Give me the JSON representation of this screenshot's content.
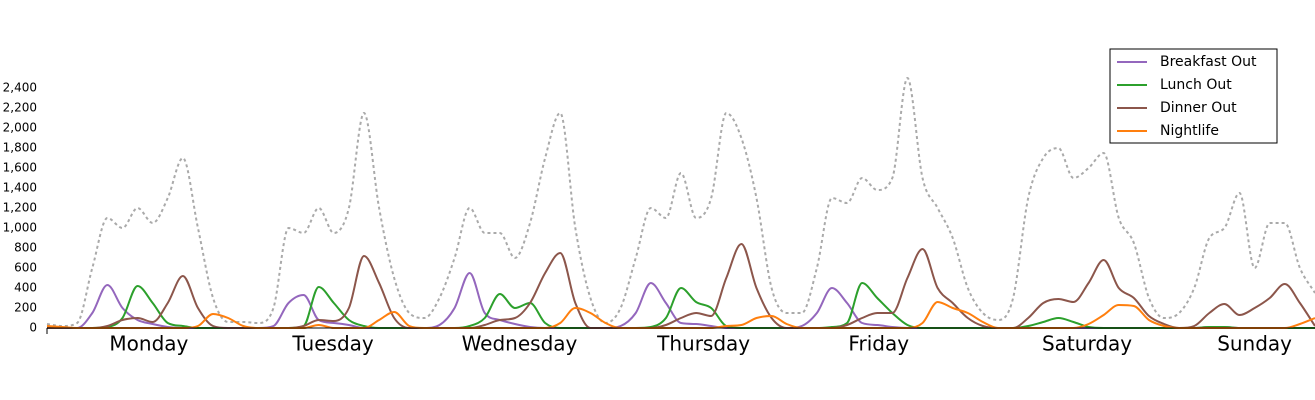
{
  "chart_data": {
    "type": "line",
    "x": [
      0,
      2,
      4,
      6,
      8,
      10,
      12,
      14,
      16,
      18,
      20,
      22,
      24,
      26,
      28,
      30,
      32,
      34,
      36,
      38,
      40,
      42,
      44,
      46,
      48,
      50,
      52,
      54,
      56,
      58,
      60,
      62,
      64,
      66,
      68,
      70,
      72,
      74,
      76,
      78,
      80,
      82,
      84,
      86,
      88,
      90,
      92,
      94,
      96,
      98,
      100,
      102,
      104,
      106,
      108,
      110,
      112,
      114,
      116,
      118,
      120,
      122,
      124,
      126,
      128,
      130,
      132,
      134,
      136,
      138,
      140,
      142,
      144,
      146,
      148,
      150,
      152,
      154,
      156,
      158,
      160,
      162,
      164,
      166,
      168
    ],
    "xlim": [
      0,
      168
    ],
    "xticks": [
      {
        "value": 13.5,
        "label": "Monday"
      },
      {
        "value": 37.9,
        "label": "Tuesday"
      },
      {
        "value": 62.6,
        "label": "Wednesday"
      },
      {
        "value": 87,
        "label": "Thursday"
      },
      {
        "value": 110.2,
        "label": "Friday"
      },
      {
        "value": 137.8,
        "label": "Saturday"
      },
      {
        "value": 160,
        "label": "Sunday"
      }
    ],
    "ylim": [
      0,
      2700
    ],
    "yticks": [
      0,
      200,
      400,
      600,
      800,
      {
        "value": 1000,
        "label": "1,000"
      },
      {
        "value": 1200,
        "label": "1,200"
      },
      {
        "value": 1400,
        "label": "1,400"
      },
      {
        "value": 1600,
        "label": "1,600"
      },
      {
        "value": 1800,
        "label": "1,800"
      },
      {
        "value": 2000,
        "label": "2,000"
      },
      {
        "value": 2200,
        "label": "2,200"
      },
      {
        "value": 2400,
        "label": "2,400"
      }
    ],
    "legend": "upper right",
    "series": [
      {
        "color": "#aaaaaa",
        "dashed": true,
        "values": [
          40,
          20,
          50,
          600,
          1100,
          1000,
          1200,
          1050,
          1300,
          1700,
          1000,
          300,
          60,
          60,
          50,
          200,
          1000,
          950,
          1200,
          950,
          1200,
          2150,
          1200,
          500,
          150,
          100,
          300,
          700,
          1200,
          950,
          950,
          700,
          1050,
          1700,
          2150,
          1000,
          300,
          50,
          200,
          700,
          1200,
          1100,
          1550,
          1100,
          1300,
          2150,
          1900,
          1300,
          400,
          150,
          150,
          600,
          1300,
          1250,
          1500,
          1380,
          1500,
          2500,
          1500,
          1200,
          900,
          400,
          150,
          80,
          300,
          1300,
          1700,
          1800,
          1500,
          1600,
          1750,
          1100,
          850,
          300,
          100,
          150,
          400,
          900,
          1000,
          1350,
          600,
          1050,
          1050,
          600,
          350
        ]
      },
      {
        "name": "Breakfast Out",
        "color": "#9467bd",
        "values": [
          0,
          0,
          0,
          150,
          430,
          200,
          80,
          40,
          10,
          0,
          0,
          0,
          0,
          0,
          0,
          20,
          250,
          330,
          80,
          50,
          30,
          0,
          0,
          0,
          0,
          0,
          30,
          200,
          550,
          150,
          80,
          40,
          10,
          0,
          0,
          0,
          0,
          0,
          20,
          150,
          450,
          250,
          50,
          40,
          20,
          0,
          0,
          0,
          0,
          0,
          20,
          150,
          400,
          250,
          50,
          30,
          10,
          0,
          0,
          0,
          0,
          0,
          0,
          0,
          0,
          0,
          0,
          0,
          0,
          0,
          0,
          0,
          0,
          0,
          0,
          0,
          0,
          10,
          10,
          0,
          0,
          0,
          0,
          0,
          0
        ]
      },
      {
        "name": "Lunch Out",
        "color": "#2ca02c",
        "values": [
          0,
          0,
          0,
          0,
          10,
          100,
          420,
          250,
          50,
          20,
          0,
          0,
          0,
          0,
          0,
          0,
          0,
          20,
          410,
          250,
          80,
          20,
          0,
          0,
          0,
          0,
          0,
          0,
          20,
          100,
          340,
          200,
          250,
          50,
          0,
          0,
          0,
          0,
          0,
          0,
          10,
          100,
          400,
          260,
          200,
          20,
          0,
          0,
          0,
          0,
          0,
          0,
          10,
          50,
          450,
          300,
          150,
          30,
          0,
          0,
          0,
          0,
          0,
          0,
          0,
          20,
          60,
          100,
          60,
          10,
          0,
          0,
          0,
          0,
          0,
          0,
          0,
          10,
          10,
          0,
          0,
          0,
          0,
          0,
          0
        ]
      },
      {
        "name": "Dinner Out",
        "color": "#8c564b",
        "values": [
          0,
          0,
          0,
          0,
          20,
          80,
          100,
          60,
          250,
          520,
          200,
          20,
          0,
          0,
          0,
          0,
          0,
          20,
          80,
          70,
          200,
          720,
          450,
          100,
          0,
          0,
          0,
          0,
          0,
          30,
          80,
          100,
          250,
          550,
          750,
          250,
          0,
          0,
          0,
          0,
          0,
          30,
          100,
          150,
          120,
          500,
          840,
          400,
          100,
          0,
          0,
          0,
          0,
          30,
          100,
          150,
          150,
          500,
          790,
          400,
          250,
          100,
          20,
          0,
          0,
          100,
          250,
          290,
          260,
          450,
          680,
          400,
          300,
          120,
          40,
          0,
          20,
          150,
          240,
          130,
          200,
          300,
          440,
          250,
          20
        ]
      },
      {
        "name": "Nightlife",
        "color": "#ff7f0e",
        "values": [
          20,
          10,
          0,
          0,
          0,
          0,
          0,
          0,
          0,
          0,
          20,
          140,
          100,
          20,
          0,
          0,
          0,
          0,
          30,
          0,
          0,
          0,
          80,
          160,
          20,
          0,
          0,
          0,
          0,
          0,
          0,
          0,
          0,
          0,
          50,
          200,
          150,
          50,
          0,
          0,
          0,
          0,
          0,
          0,
          0,
          20,
          30,
          100,
          120,
          40,
          0,
          0,
          0,
          0,
          0,
          0,
          0,
          0,
          50,
          260,
          200,
          150,
          60,
          0,
          0,
          0,
          0,
          0,
          0,
          40,
          130,
          230,
          220,
          80,
          20,
          0,
          0,
          0,
          0,
          0,
          0,
          0,
          0,
          40,
          100
        ]
      }
    ]
  }
}
